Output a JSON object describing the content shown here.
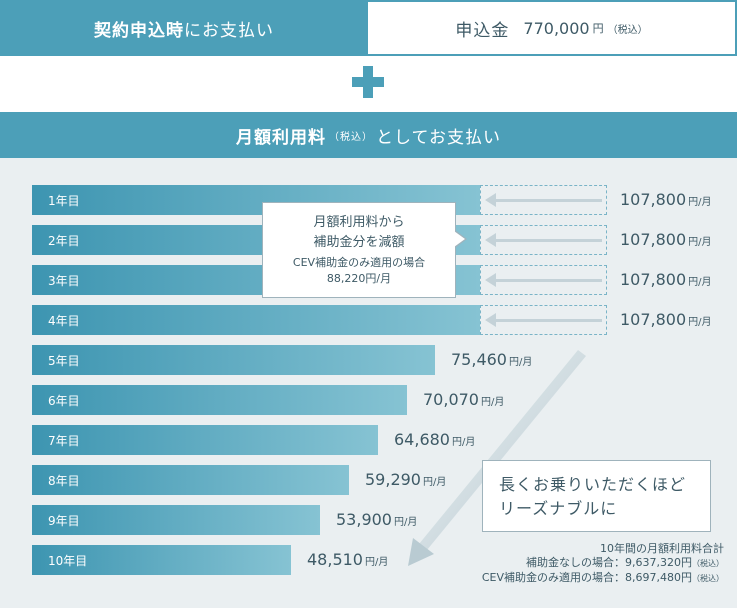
{
  "signup": {
    "label_bold": "契約申込時",
    "label_rest": "にお支払い",
    "fee_label": "申込金",
    "fee_amount": "770,000",
    "fee_unit": "円",
    "fee_tax": "（税込）"
  },
  "plus_icon": "plus-icon",
  "monthly": {
    "label_bold": "月額利用料",
    "label_tax": "（税込）",
    "label_rest": "としてお支払い"
  },
  "years": [
    {
      "label": "1年目",
      "price": "107,800",
      "unit": "円/月"
    },
    {
      "label": "2年目",
      "price": "107,800",
      "unit": "円/月"
    },
    {
      "label": "3年目",
      "price": "107,800",
      "unit": "円/月"
    },
    {
      "label": "4年目",
      "price": "107,800",
      "unit": "円/月"
    },
    {
      "label": "5年目",
      "price": "75,460",
      "unit": "円/月"
    },
    {
      "label": "6年目",
      "price": "70,070",
      "unit": "円/月"
    },
    {
      "label": "7年目",
      "price": "64,680",
      "unit": "円/月"
    },
    {
      "label": "8年目",
      "price": "59,290",
      "unit": "円/月"
    },
    {
      "label": "9年目",
      "price": "53,900",
      "unit": "円/月"
    },
    {
      "label": "10年目",
      "price": "48,510",
      "unit": "円/月"
    }
  ],
  "subsidy_callout": {
    "line1": "月額利用料から",
    "line2": "補助金分を減額",
    "line3": "CEV補助金のみ適用の場合",
    "line4": "88,220円/月"
  },
  "lease_callout": {
    "line1": "長くお乗りいただくほど",
    "line2": "リーズナブルに"
  },
  "summary": {
    "title": "10年間の月額利用料合計",
    "no_subsidy": "補助金なしの場合：9,637,320円",
    "with_cev": "CEV補助金のみ適用の場合：8,697,480円",
    "tax": "（税込）"
  },
  "colors": {
    "accent": "#4c9fb8",
    "bar_start": "#3d95b1",
    "bar_end": "#86c3d3",
    "panel_bg": "#eaeff1",
    "text_dark": "#3e5a66"
  }
}
